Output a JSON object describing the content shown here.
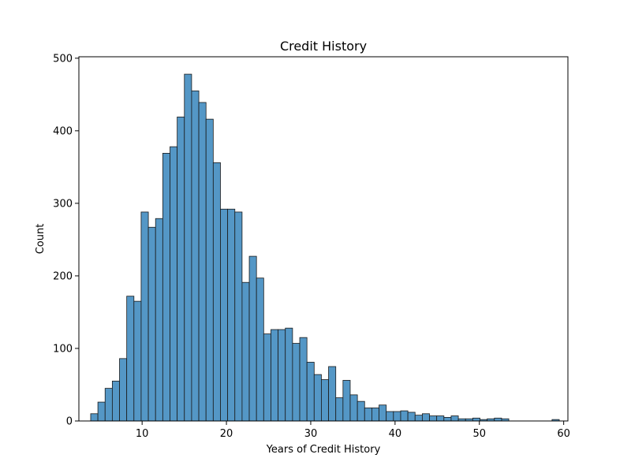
{
  "chart_data": {
    "type": "bar",
    "title": "Credit History",
    "xlabel": "Years of Credit History",
    "ylabel": "Count",
    "xlim": [
      2.5,
      60.5
    ],
    "ylim": [
      0,
      502
    ],
    "x_ticks": [
      10,
      20,
      30,
      40,
      50,
      60
    ],
    "y_ticks": [
      0,
      100,
      200,
      300,
      400,
      500
    ],
    "bin_start": 3.9,
    "bin_width": 0.855,
    "values": [
      10,
      26,
      45,
      55,
      86,
      172,
      165,
      288,
      267,
      279,
      369,
      378,
      419,
      478,
      455,
      439,
      416,
      356,
      292,
      292,
      288,
      191,
      227,
      197,
      120,
      126,
      126,
      128,
      107,
      115,
      81,
      64,
      57,
      75,
      32,
      56,
      36,
      27,
      18,
      18,
      22,
      13,
      13,
      14,
      12,
      8,
      10,
      7,
      7,
      5,
      7,
      3,
      3,
      4,
      2,
      3,
      4,
      3,
      0,
      0,
      0,
      0,
      0,
      0,
      2
    ],
    "bar_color": "#5497c6",
    "edge_color": "#1a1a1a",
    "grid": false,
    "legend": "none"
  }
}
